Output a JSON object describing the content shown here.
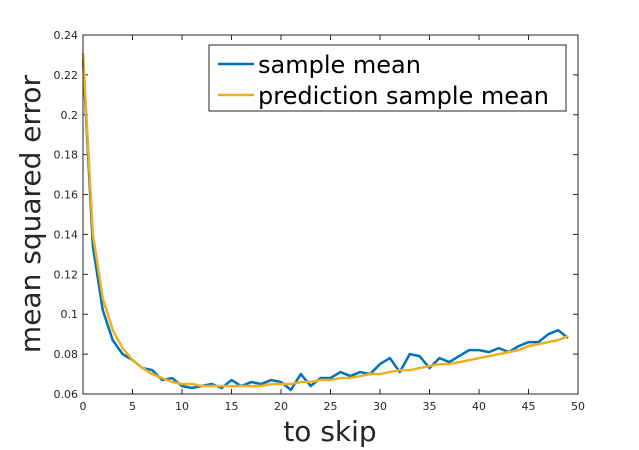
{
  "chart_data": {
    "type": "line",
    "xlabel": "to skip",
    "ylabel": "mean squared error",
    "xlim": [
      0,
      50
    ],
    "ylim": [
      0.06,
      0.24
    ],
    "xticks": [
      0,
      5,
      10,
      15,
      20,
      25,
      30,
      35,
      40,
      45,
      50
    ],
    "yticks": [
      0.06,
      0.08,
      0.1,
      0.12,
      0.14,
      0.16,
      0.18,
      0.2,
      0.22,
      0.24
    ],
    "xtick_labels": [
      "0",
      "5",
      "10",
      "15",
      "20",
      "25",
      "30",
      "35",
      "40",
      "45",
      "50"
    ],
    "ytick_labels": [
      "0.06",
      "0.08",
      "0.1",
      "0.12",
      "0.14",
      "0.16",
      "0.18",
      "0.2",
      "0.22",
      "0.24"
    ],
    "grid": false,
    "legend_position": "top-right",
    "x": [
      0,
      1,
      2,
      3,
      4,
      5,
      6,
      7,
      8,
      9,
      10,
      11,
      12,
      13,
      14,
      15,
      16,
      17,
      18,
      19,
      20,
      21,
      22,
      23,
      24,
      25,
      26,
      27,
      28,
      29,
      30,
      31,
      32,
      33,
      34,
      35,
      36,
      37,
      38,
      39,
      40,
      41,
      42,
      43,
      44,
      45,
      46,
      47,
      48,
      49
    ],
    "series": [
      {
        "name": "sample mean",
        "color": "#0072BD",
        "values": [
          0.228,
          0.134,
          0.102,
          0.087,
          0.08,
          0.077,
          0.073,
          0.072,
          0.067,
          0.068,
          0.064,
          0.063,
          0.064,
          0.065,
          0.063,
          0.067,
          0.064,
          0.066,
          0.065,
          0.067,
          0.066,
          0.062,
          0.07,
          0.064,
          0.068,
          0.068,
          0.071,
          0.069,
          0.071,
          0.07,
          0.075,
          0.078,
          0.071,
          0.08,
          0.079,
          0.073,
          0.078,
          0.076,
          0.079,
          0.082,
          0.082,
          0.081,
          0.083,
          0.081,
          0.084,
          0.086,
          0.086,
          0.09,
          0.092,
          0.088
        ]
      },
      {
        "name": "prediction sample mean",
        "color": "#EDB120",
        "values": [
          0.231,
          0.14,
          0.108,
          0.092,
          0.083,
          0.077,
          0.073,
          0.07,
          0.068,
          0.066,
          0.065,
          0.065,
          0.064,
          0.064,
          0.064,
          0.064,
          0.064,
          0.064,
          0.064,
          0.065,
          0.065,
          0.065,
          0.066,
          0.066,
          0.067,
          0.067,
          0.068,
          0.068,
          0.069,
          0.07,
          0.07,
          0.071,
          0.072,
          0.072,
          0.073,
          0.074,
          0.075,
          0.075,
          0.076,
          0.077,
          0.078,
          0.079,
          0.08,
          0.081,
          0.082,
          0.084,
          0.085,
          0.086,
          0.087,
          0.089
        ]
      }
    ]
  }
}
